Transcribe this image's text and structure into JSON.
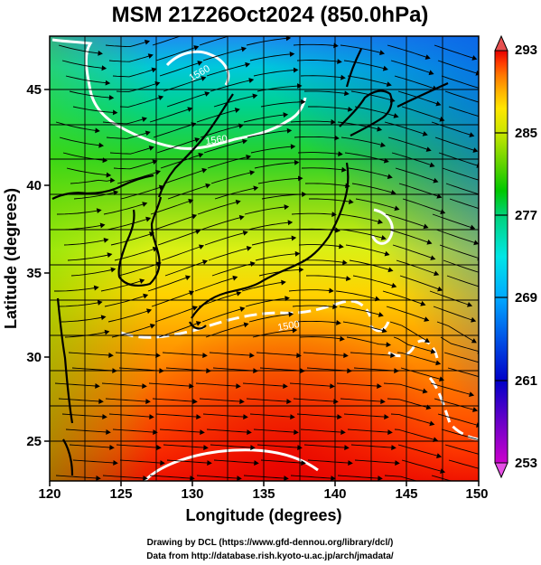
{
  "title": "MSM 21Z26Oct2024 (850.0hPa)",
  "xaxis": {
    "label": "Longitude (degrees)",
    "ticks": [
      "120",
      "125",
      "130",
      "135",
      "140",
      "145",
      "150"
    ],
    "range": [
      120,
      150
    ]
  },
  "yaxis": {
    "label": "Latitude  (degrees)",
    "ticks": [
      "25",
      "30",
      "35",
      "40",
      "45"
    ],
    "range": [
      22.4,
      47.6
    ]
  },
  "colorbar": {
    "labels": [
      "293",
      "285",
      "277",
      "269",
      "261",
      "253"
    ],
    "range": [
      253,
      293
    ],
    "colors": [
      "#cc00cc",
      "#6a00c8",
      "#0000c8",
      "#0052e6",
      "#00a8ff",
      "#00e6e6",
      "#00d27a",
      "#00c800",
      "#5ad200",
      "#c8e600",
      "#ffe600",
      "#ffb400",
      "#ff7800",
      "#ff3c00",
      "#e60000"
    ]
  },
  "contour_labels": [
    "1560",
    "1500",
    "1560"
  ],
  "credits": {
    "line1": "Drawing by DCL (https://www.gfd-dennou.org/library/dcl/)",
    "line2": "Data from http://database.rish.kyoto-u.ac.jp/arch/jmadata/"
  }
}
